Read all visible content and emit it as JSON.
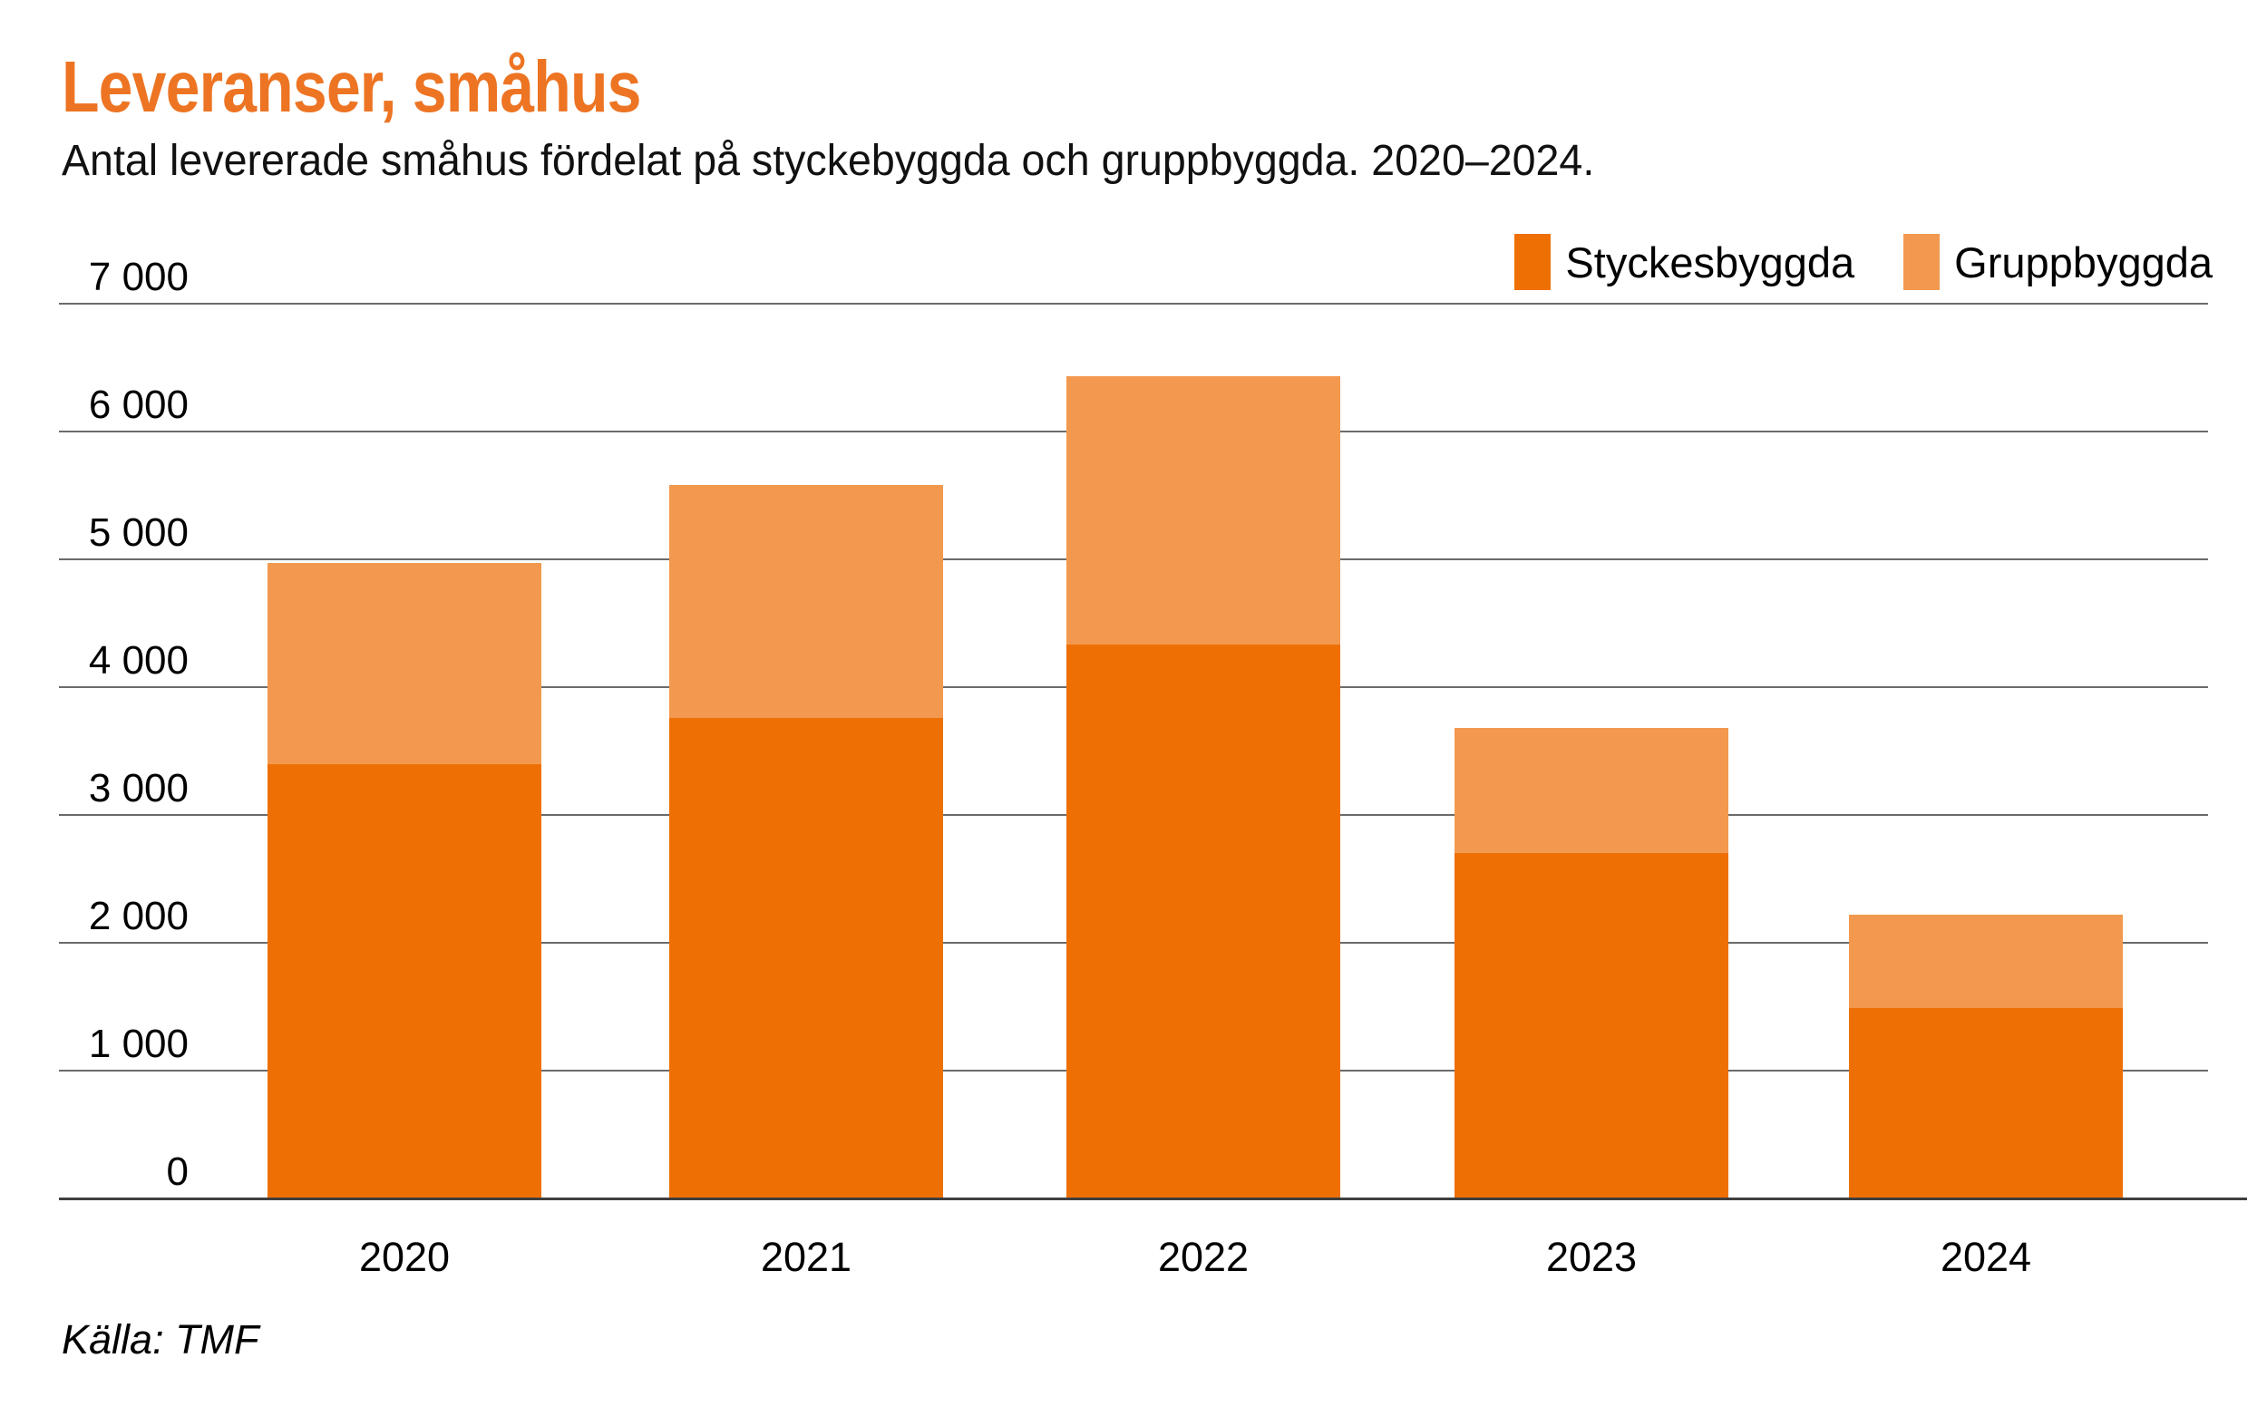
{
  "header": {
    "title": "Leveranser, småhus",
    "subtitle": "Antal levererade småhus fördelat på styckebyggda och gruppbyggda. 2020–2024."
  },
  "source": "Källa: TMF",
  "colors": {
    "title": "#ED7423",
    "styckesbyggda": "#EE7005",
    "gruppbyggda": "#F2994F",
    "gridline": "#6B6B6B",
    "axisline": "#3F3F3F",
    "text": "#000000"
  },
  "chart_data": {
    "type": "bar",
    "stacked": true,
    "title": "Leveranser, småhus",
    "xlabel": "",
    "ylabel": "",
    "grid": true,
    "legend_position": "top-right",
    "ylim": [
      0,
      7000
    ],
    "ytick_step": 1000,
    "ytick_labels": [
      "0",
      "1 000",
      "2 000",
      "3 000",
      "4 000",
      "5 000",
      "6 000",
      "7 000"
    ],
    "categories": [
      "2020",
      "2021",
      "2022",
      "2023",
      "2024"
    ],
    "series": [
      {
        "name": "Styckesbyggda",
        "color_key": "styckesbyggda",
        "values": [
          3400,
          3760,
          4330,
          2700,
          1490
        ]
      },
      {
        "name": "Gruppbyggda",
        "color_key": "gruppbyggda",
        "values": [
          1570,
          1820,
          2100,
          980,
          730
        ]
      }
    ]
  }
}
